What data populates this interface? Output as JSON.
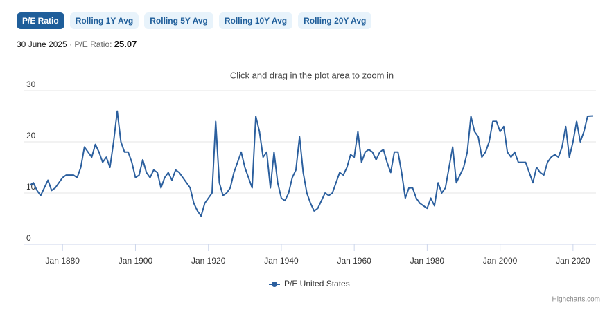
{
  "buttons": [
    "P/E Ratio",
    "Rolling 1Y Avg",
    "Rolling 5Y Avg",
    "Rolling 10Y Avg",
    "Rolling 20Y Avg"
  ],
  "info": {
    "date": "30 June 2025",
    "separator": "·",
    "label": "P/E Ratio:",
    "value": "25.07"
  },
  "credits": "Highcharts.com",
  "chart_data": {
    "type": "line",
    "subtitle": "Click and drag in the plot area to zoom in",
    "x": [
      1871,
      1872,
      1873,
      1874,
      1875,
      1876,
      1877,
      1878,
      1879,
      1880,
      1881,
      1882,
      1883,
      1884,
      1885,
      1886,
      1887,
      1888,
      1889,
      1890,
      1891,
      1892,
      1893,
      1894,
      1895,
      1896,
      1897,
      1898,
      1899,
      1900,
      1901,
      1902,
      1903,
      1904,
      1905,
      1906,
      1907,
      1908,
      1909,
      1910,
      1911,
      1912,
      1913,
      1914,
      1915,
      1916,
      1917,
      1918,
      1919,
      1920,
      1921,
      1922,
      1923,
      1924,
      1925,
      1926,
      1927,
      1928,
      1929,
      1930,
      1931,
      1932,
      1933,
      1934,
      1935,
      1936,
      1937,
      1938,
      1939,
      1940,
      1941,
      1942,
      1943,
      1944,
      1945,
      1946,
      1947,
      1948,
      1949,
      1950,
      1951,
      1952,
      1953,
      1954,
      1955,
      1956,
      1957,
      1958,
      1959,
      1960,
      1961,
      1962,
      1963,
      1964,
      1965,
      1966,
      1967,
      1968,
      1969,
      1970,
      1971,
      1972,
      1973,
      1974,
      1975,
      1976,
      1977,
      1978,
      1979,
      1980,
      1981,
      1982,
      1983,
      1984,
      1985,
      1986,
      1987,
      1988,
      1989,
      1990,
      1991,
      1992,
      1993,
      1994,
      1995,
      1996,
      1997,
      1998,
      1999,
      2000,
      2001,
      2002,
      2003,
      2004,
      2005,
      2006,
      2007,
      2008,
      2009,
      2010,
      2011,
      2012,
      2013,
      2014,
      2015,
      2016,
      2017,
      2018,
      2019,
      2020,
      2021,
      2022,
      2023,
      2024,
      2025.5
    ],
    "series": [
      {
        "name": "P/E United States",
        "color": "#2b5f9e",
        "values": [
          11.5,
          12,
          10.5,
          9.5,
          11,
          12.5,
          10.5,
          11,
          12,
          13,
          13.5,
          13.5,
          13.5,
          13,
          15,
          19,
          18,
          17,
          19.5,
          18,
          16,
          17,
          15,
          20,
          26,
          20,
          18,
          18,
          16,
          13,
          13.5,
          16.5,
          14,
          13,
          14.5,
          14,
          11,
          13,
          14,
          12.5,
          14.5,
          14,
          13,
          12,
          11,
          8,
          6.5,
          5.5,
          8,
          9,
          10,
          24,
          12,
          9.5,
          10,
          11,
          14,
          16,
          18,
          15,
          13,
          11,
          25,
          22,
          17,
          18,
          11,
          18,
          12,
          9,
          8.5,
          10,
          13,
          14.5,
          21,
          14,
          10,
          8,
          6.5,
          7,
          8.5,
          10,
          9.5,
          10,
          12,
          14,
          13.5,
          15,
          17.5,
          17,
          22,
          16,
          18,
          18.5,
          18,
          16.5,
          18,
          18.5,
          16,
          14,
          18,
          18,
          14,
          9,
          11,
          11,
          9,
          8,
          7.5,
          7,
          9,
          7.5,
          12,
          10,
          11,
          15,
          19,
          12,
          13.5,
          15,
          18,
          25,
          22,
          21,
          17,
          18,
          20,
          24,
          24,
          22,
          23,
          18,
          17,
          18,
          16,
          16,
          16,
          14,
          12,
          15,
          14,
          13.5,
          16,
          17,
          17.5,
          17,
          19,
          23,
          17,
          20,
          24,
          20,
          22,
          25,
          25.07
        ]
      }
    ],
    "xlim": [
      1869.5,
      2026.3
    ],
    "xticks": [
      {
        "value": 1880,
        "label": "Jan 1880"
      },
      {
        "value": 1900,
        "label": "Jan 1900"
      },
      {
        "value": 1920,
        "label": "Jan 1920"
      },
      {
        "value": 1940,
        "label": "Jan 1940"
      },
      {
        "value": 1960,
        "label": "Jan 1960"
      },
      {
        "value": 1980,
        "label": "Jan 1980"
      },
      {
        "value": 2000,
        "label": "Jan 2000"
      },
      {
        "value": 2020,
        "label": "Jan 2020"
      }
    ],
    "ylim": [
      0,
      30
    ],
    "yticks": [
      0,
      10,
      20,
      30
    ],
    "grid": true,
    "legend": "bottom"
  }
}
